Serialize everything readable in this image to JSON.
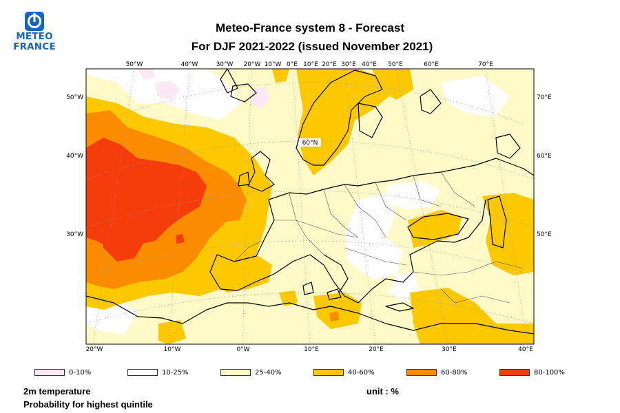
{
  "logo": {
    "line1": "METEO",
    "line2": "FRANCE",
    "color": "#1565c0"
  },
  "title": {
    "line1": "Meteo-France system 8  -  Forecast",
    "line2": "For DJF 2021-2022      (issued November 2021)"
  },
  "map": {
    "top_labels": [
      "50°W",
      "40°W",
      "30°W",
      "20°W",
      "10°W",
      "0°E",
      "10°E",
      "20°E",
      "30°E",
      "40°E",
      "50°E",
      "60°E",
      "70°E"
    ],
    "left_labels": [
      "50°W",
      "40°W",
      "30°W"
    ],
    "right_labels": [
      "70°E",
      "60°E",
      "50°E"
    ],
    "bottom_labels": [
      "20°W",
      "10°W",
      "0°W",
      "10°E",
      "20°E",
      "30°E",
      "40°E"
    ],
    "inner_label": "60°N"
  },
  "legend": [
    {
      "label": "0-10%",
      "color": "#fde8f6"
    },
    {
      "label": "10-25%",
      "color": "#ffffff"
    },
    {
      "label": "25-40%",
      "color": "#fffac8"
    },
    {
      "label": "40-60%",
      "color": "#fcc800"
    },
    {
      "label": "60-80%",
      "color": "#fb8c00"
    },
    {
      "label": "80-100%",
      "color": "#f53c0a"
    }
  ],
  "footer": {
    "variable": "2m temperature",
    "description": "Probability for highest quintile",
    "unit": "unit : %"
  }
}
